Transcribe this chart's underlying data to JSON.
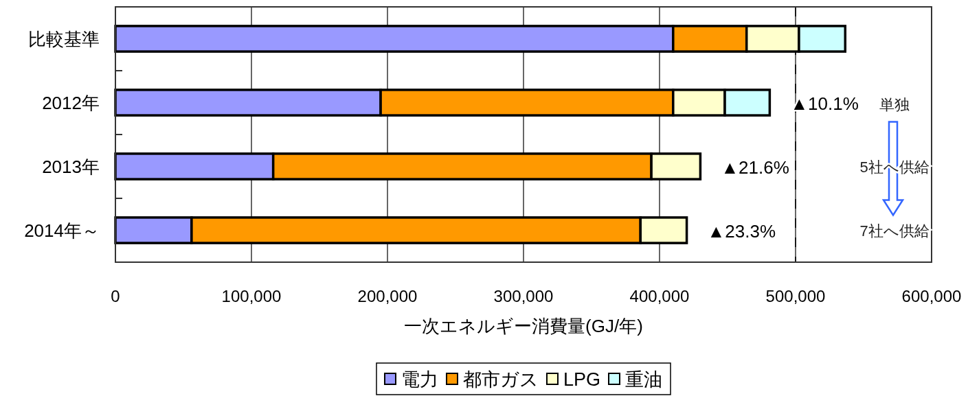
{
  "chart_data": {
    "type": "bar",
    "orientation": "horizontal",
    "stacked": true,
    "categories": [
      "比較基準",
      "2012年",
      "2013年",
      "2014年～"
    ],
    "series": [
      {
        "name": "電力",
        "color": "#9999ff",
        "values": [
          410000,
          195000,
          116000,
          56000
        ]
      },
      {
        "name": "都市ガス",
        "color": "#ff9900",
        "values": [
          54000,
          215000,
          278000,
          330000
        ]
      },
      {
        "name": "LPG",
        "color": "#ffffcc",
        "values": [
          38500,
          38000,
          36000,
          34000
        ]
      },
      {
        "name": "重油",
        "color": "#ccffff",
        "values": [
          34000,
          33000,
          null,
          null
        ]
      }
    ],
    "xlim": [
      0,
      600000
    ],
    "xticks": [
      0,
      {
        "value": 100000,
        "label": "100,000"
      },
      {
        "value": 200000,
        "label": "200,000"
      },
      {
        "value": 300000,
        "label": "300,000"
      },
      {
        "value": 400000,
        "label": "400,000"
      },
      {
        "value": 500000,
        "label": "500,000"
      },
      {
        "value": 600000,
        "label": "600,000"
      }
    ],
    "xlabel": "一次エネルギー消費量(GJ/年)",
    "grid": "x",
    "legend": "bottom",
    "ref_lines": [
      {
        "axis": "x",
        "value": 500000,
        "color": "#000000",
        "line_style": "dashed"
      }
    ],
    "annotations": [
      "▲10.1%",
      "▲21.6%",
      "▲23.3%",
      "単独",
      "5社へ供給",
      "7社へ供給"
    ]
  }
}
